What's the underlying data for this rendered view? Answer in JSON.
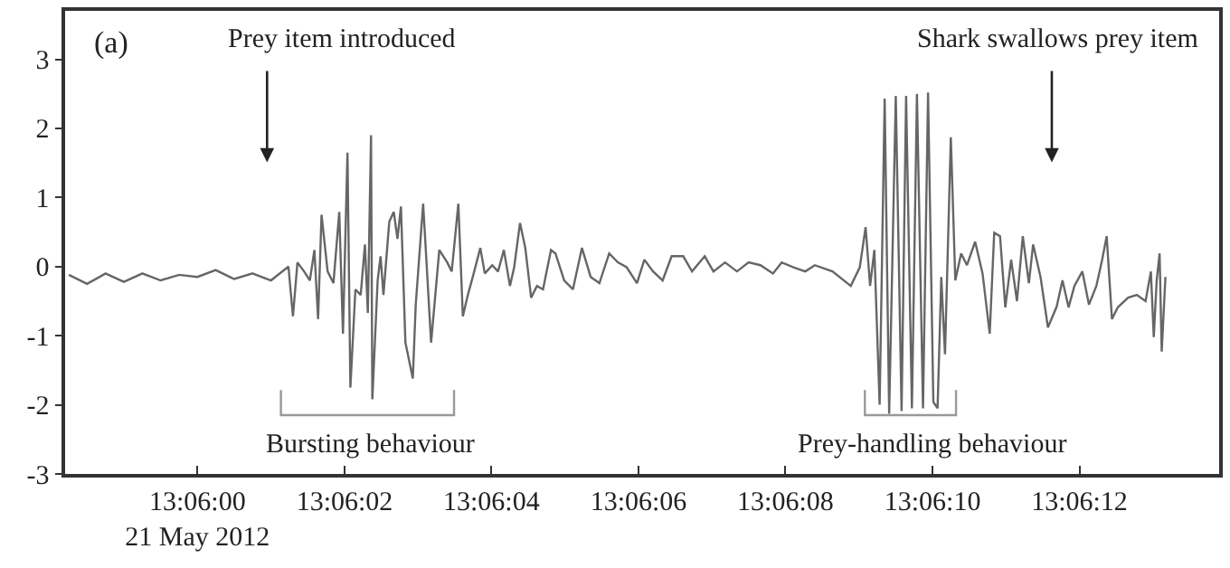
{
  "chart_data": {
    "type": "line",
    "xlim": [
      13.0995,
      13.103861
    ],
    "ylim": [
      -3,
      3.7
    ],
    "xticks": [
      {
        "value": 13.1,
        "label": "13:06:00\n21 May 2012"
      },
      {
        "value": 13.100556,
        "label": "13:06:02"
      },
      {
        "value": 13.101111,
        "label": "13:06:04"
      },
      {
        "value": 13.101667,
        "label": "13:06:06"
      },
      {
        "value": 13.102222,
        "label": "13:06:08"
      },
      {
        "value": 13.102778,
        "label": "13:06:10"
      },
      {
        "value": 13.103333,
        "label": "13:06:12"
      }
    ],
    "yticks": [
      -3,
      -2,
      -1,
      0,
      1,
      2,
      3
    ],
    "marker": "none",
    "line_style": "solid",
    "annotations": [
      "(a)",
      "Prey item introduced",
      "Shark swallows prey item",
      "Bursting behaviour",
      "Prey-handling behaviour"
    ],
    "series": [
      {
        "color": "#666666",
        "x": [
          13.099514,
          13.099583,
          13.099653,
          13.099722,
          13.099792,
          13.099861,
          13.099931,
          13.1,
          13.100069,
          13.100139,
          13.100208,
          13.100278,
          13.100344,
          13.100361,
          13.100378,
          13.100403,
          13.100425,
          13.100442,
          13.100456,
          13.100469,
          13.100492,
          13.100514,
          13.100536,
          13.10055,
          13.100567,
          13.100578,
          13.100597,
          13.100617,
          13.100633,
          13.100644,
          13.100656,
          13.100661,
          13.100681,
          13.100692,
          13.100703,
          13.100725,
          13.100742,
          13.100756,
          13.100769,
          13.100786,
          13.100814,
          13.100825,
          13.100853,
          13.100883,
          13.100914,
          13.100944,
          13.100961,
          13.100986,
          13.101003,
          13.101022,
          13.101044,
          13.101069,
          13.101086,
          13.101114,
          13.101136,
          13.101158,
          13.101181,
          13.101197,
          13.101219,
          13.101239,
          13.101261,
          13.101283,
          13.101306,
          13.101336,
          13.101353,
          13.101386,
          13.101419,
          13.101453,
          13.101486,
          13.101519,
          13.101556,
          13.101589,
          13.101622,
          13.101661,
          13.101689,
          13.101722,
          13.101758,
          13.101792,
          13.101836,
          13.101869,
          13.101917,
          13.10195,
          13.101994,
          13.102039,
          13.102083,
          13.102128,
          13.102175,
          13.102208,
          13.102253,
          13.102297,
          13.102333,
          13.1024,
          13.102469,
          13.102503,
          13.102525,
          13.102542,
          13.102558,
          13.102578,
          13.102597,
          13.102614,
          13.102639,
          13.102661,
          13.102678,
          13.1027,
          13.102719,
          13.102742,
          13.102761,
          13.102781,
          13.102797,
          13.102811,
          13.102825,
          13.102847,
          13.102864,
          13.102886,
          13.102908,
          13.102939,
          13.102967,
          13.102994,
          13.103011,
          13.103033,
          13.103053,
          13.103075,
          13.103097,
          13.103119,
          13.103142,
          13.103158,
          13.103186,
          13.103214,
          13.103247,
          13.103269,
          13.103292,
          13.103314,
          13.103344,
          13.103369,
          13.103397,
          13.103419,
          13.103436,
          13.103456,
          13.103478,
          13.103517,
          13.10355,
          13.103583,
          13.103603,
          13.103614,
          13.103625,
          13.103636,
          13.103644,
          13.103658
        ],
        "values": [
          -0.12,
          -0.25,
          -0.1,
          -0.22,
          -0.1,
          -0.2,
          -0.12,
          -0.15,
          -0.05,
          -0.18,
          -0.1,
          -0.2,
          0,
          -0.72,
          0.06,
          -0.07,
          -0.2,
          0.24,
          -0.76,
          0.75,
          -0.07,
          -0.24,
          0.79,
          -0.97,
          1.65,
          -1.75,
          -0.33,
          -0.41,
          0.32,
          -0.67,
          1.9,
          -1.92,
          -0.2,
          0.15,
          -0.41,
          0.65,
          0.79,
          0.4,
          0.87,
          -1.1,
          -1.62,
          -0.55,
          0.91,
          -1.1,
          0.24,
          0.06,
          -0.07,
          0.91,
          -0.72,
          -0.41,
          -0.1,
          0.27,
          -0.1,
          0.02,
          -0.07,
          0.24,
          -0.28,
          -0.01,
          0.63,
          0.27,
          -0.45,
          -0.28,
          -0.33,
          0.24,
          0.19,
          -0.2,
          -0.33,
          0.27,
          -0.15,
          -0.24,
          0.19,
          0.06,
          -0.01,
          -0.24,
          0.1,
          -0.07,
          -0.2,
          0.15,
          0.15,
          -0.07,
          0.15,
          -0.07,
          0.06,
          -0.07,
          0.06,
          0.02,
          -0.1,
          0.06,
          -0.01,
          -0.07,
          0.02,
          -0.07,
          -0.28,
          -0.01,
          0.57,
          -0.28,
          0.24,
          -2.0,
          2.43,
          -2.13,
          2.47,
          -2.09,
          2.47,
          -2.05,
          2.5,
          -2.05,
          2.52,
          -1.96,
          -2.05,
          -0.15,
          -1.27,
          1.87,
          -0.2,
          0.19,
          0.02,
          0.36,
          -0.1,
          -0.97,
          0.49,
          0.44,
          -0.59,
          0.1,
          -0.5,
          0.44,
          -0.24,
          0.32,
          -0.15,
          -0.88,
          -0.58,
          -0.2,
          -0.59,
          -0.28,
          -0.07,
          -0.55,
          -0.28,
          0.1,
          0.44,
          -0.76,
          -0.59,
          -0.45,
          -0.41,
          -0.5,
          -0.07,
          -1.02,
          -0.2,
          0.19,
          -1.23,
          -0.15
        ]
      }
    ]
  }
}
